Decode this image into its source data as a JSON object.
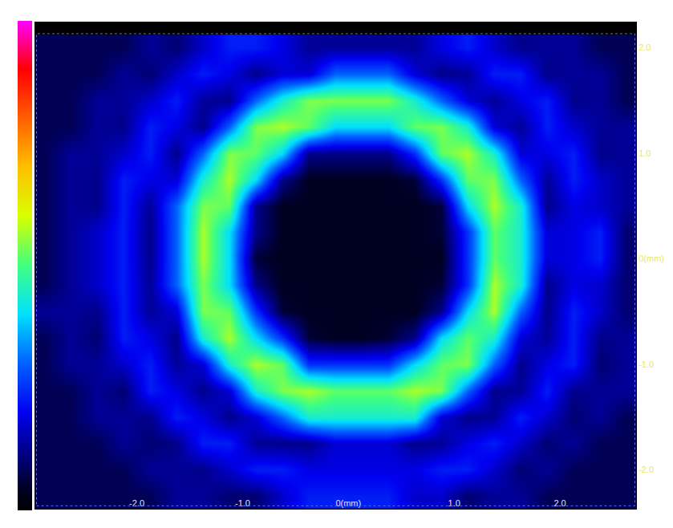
{
  "chart_data": {
    "type": "heatmap",
    "x": [
      -2.875,
      -2.625,
      -2.375,
      -2.125,
      -1.875,
      -1.625,
      -1.375,
      -1.125,
      -0.875,
      -0.625,
      -0.375,
      -0.125,
      0.125,
      0.375,
      0.625,
      0.875,
      1.125,
      1.375,
      1.625,
      1.875,
      2.125,
      2.375,
      2.625
    ],
    "y": [
      -2.25,
      -2.0,
      -1.75,
      -1.5,
      -1.25,
      -1.0,
      -0.75,
      -0.5,
      -0.25,
      0,
      0.25,
      0.5,
      0.75,
      1.0,
      1.25,
      1.5,
      1.75,
      2.0
    ],
    "z": [
      [
        8,
        8,
        8,
        8,
        8,
        13,
        13,
        10,
        10,
        17,
        23,
        23,
        23,
        23,
        17,
        17,
        10,
        13,
        13,
        8,
        8,
        8,
        8
      ],
      [
        8,
        8,
        8,
        8,
        13,
        13,
        12,
        17,
        23,
        23,
        19,
        19,
        19,
        19,
        19,
        23,
        23,
        17,
        10,
        13,
        8,
        8,
        8
      ],
      [
        8,
        8,
        8,
        13,
        10,
        12,
        23,
        23,
        13,
        12,
        12,
        18,
        18,
        18,
        12,
        13,
        19,
        23,
        17,
        10,
        13,
        8,
        8
      ],
      [
        8,
        8,
        13,
        13,
        12,
        23,
        19,
        12,
        18,
        30,
        44,
        44,
        44,
        44,
        44,
        18,
        12,
        13,
        23,
        17,
        10,
        13,
        8
      ],
      [
        8,
        8,
        13,
        10,
        23,
        19,
        12,
        18,
        44,
        54,
        57,
        52,
        52,
        52,
        57,
        54,
        30,
        12,
        13,
        23,
        12,
        13,
        13
      ],
      [
        8,
        13,
        13,
        17,
        23,
        13,
        18,
        44,
        57,
        52,
        25,
        25,
        25,
        25,
        40,
        52,
        54,
        30,
        12,
        19,
        23,
        10,
        13
      ],
      [
        8,
        13,
        10,
        23,
        19,
        12,
        44,
        57,
        40,
        25,
        6,
        4,
        4,
        6,
        12,
        40,
        52,
        44,
        18,
        13,
        23,
        12,
        13
      ],
      [
        13,
        13,
        12,
        23,
        13,
        18,
        54,
        52,
        25,
        6,
        4,
        4,
        4,
        4,
        4,
        12,
        40,
        57,
        30,
        12,
        23,
        17,
        10
      ],
      [
        8,
        13,
        17,
        23,
        13,
        30,
        54,
        40,
        12,
        4,
        4,
        4,
        4,
        4,
        4,
        6,
        25,
        57,
        44,
        12,
        19,
        17,
        10
      ],
      [
        8,
        13,
        17,
        23,
        12,
        30,
        57,
        40,
        6,
        4,
        4,
        4,
        4,
        4,
        4,
        4,
        25,
        52,
        44,
        18,
        19,
        23,
        10
      ],
      [
        8,
        13,
        17,
        23,
        12,
        30,
        57,
        40,
        12,
        4,
        4,
        4,
        4,
        4,
        4,
        6,
        25,
        52,
        44,
        18,
        19,
        23,
        10
      ],
      [
        8,
        13,
        12,
        23,
        13,
        30,
        54,
        52,
        12,
        4,
        4,
        4,
        4,
        4,
        4,
        6,
        40,
        57,
        44,
        12,
        19,
        17,
        13
      ],
      [
        8,
        13,
        12,
        23,
        19,
        18,
        44,
        57,
        40,
        12,
        4,
        4,
        4,
        4,
        6,
        25,
        52,
        54,
        30,
        13,
        23,
        17,
        13
      ],
      [
        8,
        13,
        13,
        17,
        23,
        12,
        30,
        54,
        52,
        40,
        12,
        12,
        12,
        12,
        25,
        52,
        57,
        44,
        18,
        19,
        23,
        12,
        13
      ],
      [
        8,
        8,
        13,
        12,
        23,
        19,
        12,
        30,
        54,
        57,
        52,
        40,
        40,
        40,
        52,
        54,
        44,
        18,
        13,
        23,
        17,
        13,
        13
      ],
      [
        8,
        8,
        13,
        13,
        17,
        23,
        13,
        12,
        30,
        44,
        54,
        54,
        54,
        54,
        44,
        30,
        18,
        13,
        19,
        23,
        12,
        13,
        8
      ],
      [
        8,
        8,
        8,
        13,
        10,
        17,
        23,
        19,
        12,
        18,
        18,
        30,
        30,
        30,
        18,
        12,
        13,
        23,
        23,
        12,
        13,
        13,
        8
      ],
      [
        8,
        8,
        8,
        8,
        13,
        10,
        17,
        23,
        23,
        19,
        13,
        13,
        13,
        13,
        13,
        19,
        23,
        17,
        12,
        13,
        13,
        8,
        8
      ]
    ],
    "zlim": [
      0,
      100
    ],
    "xlim": [
      -2.96,
      2.72
    ],
    "ylim": [
      -2.37,
      2.24
    ],
    "xticks": [
      {
        "value": -2,
        "label": "-2.0"
      },
      {
        "value": -1,
        "label": "-1.0"
      },
      {
        "value": 0,
        "label": "0(mm)"
      },
      {
        "value": 1,
        "label": "1.0"
      },
      {
        "value": 2,
        "label": "2.0"
      }
    ],
    "yticks": [
      {
        "value": 2,
        "label": "2.0"
      },
      {
        "value": 1,
        "label": "1.0"
      },
      {
        "value": 0,
        "label": "0(mm)"
      },
      {
        "value": -1,
        "label": "-1.0"
      },
      {
        "value": -2,
        "label": "-2.0"
      }
    ],
    "grid": false
  }
}
